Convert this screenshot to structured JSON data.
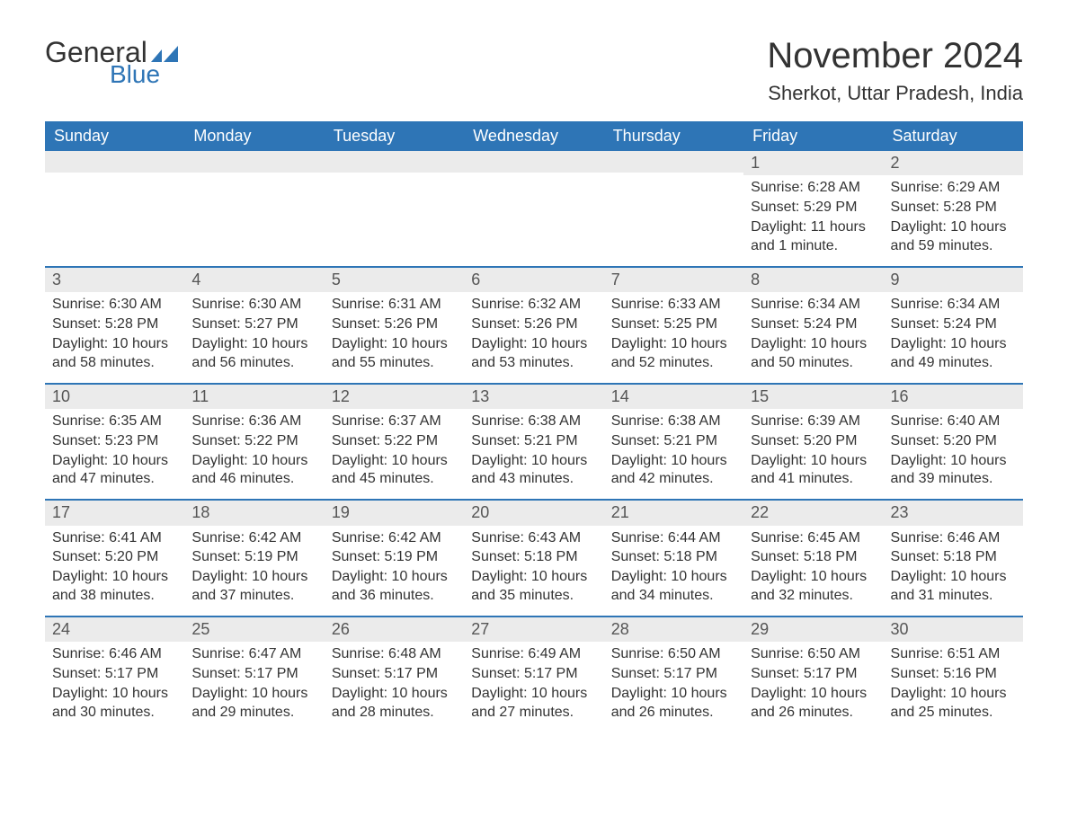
{
  "logo": {
    "text1": "General",
    "text2": "Blue",
    "flag_color": "#2e75b6"
  },
  "title": "November 2024",
  "location": "Sherkot, Uttar Pradesh, India",
  "colors": {
    "header_bg": "#2e75b6",
    "header_text": "#ffffff",
    "daynum_bg": "#ebebeb",
    "border": "#2e75b6",
    "text": "#333333"
  },
  "weekdays": [
    "Sunday",
    "Monday",
    "Tuesday",
    "Wednesday",
    "Thursday",
    "Friday",
    "Saturday"
  ],
  "weeks": [
    [
      {
        "day": "",
        "sunrise": "",
        "sunset": "",
        "daylight": ""
      },
      {
        "day": "",
        "sunrise": "",
        "sunset": "",
        "daylight": ""
      },
      {
        "day": "",
        "sunrise": "",
        "sunset": "",
        "daylight": ""
      },
      {
        "day": "",
        "sunrise": "",
        "sunset": "",
        "daylight": ""
      },
      {
        "day": "",
        "sunrise": "",
        "sunset": "",
        "daylight": ""
      },
      {
        "day": "1",
        "sunrise": "Sunrise: 6:28 AM",
        "sunset": "Sunset: 5:29 PM",
        "daylight": "Daylight: 11 hours and 1 minute."
      },
      {
        "day": "2",
        "sunrise": "Sunrise: 6:29 AM",
        "sunset": "Sunset: 5:28 PM",
        "daylight": "Daylight: 10 hours and 59 minutes."
      }
    ],
    [
      {
        "day": "3",
        "sunrise": "Sunrise: 6:30 AM",
        "sunset": "Sunset: 5:28 PM",
        "daylight": "Daylight: 10 hours and 58 minutes."
      },
      {
        "day": "4",
        "sunrise": "Sunrise: 6:30 AM",
        "sunset": "Sunset: 5:27 PM",
        "daylight": "Daylight: 10 hours and 56 minutes."
      },
      {
        "day": "5",
        "sunrise": "Sunrise: 6:31 AM",
        "sunset": "Sunset: 5:26 PM",
        "daylight": "Daylight: 10 hours and 55 minutes."
      },
      {
        "day": "6",
        "sunrise": "Sunrise: 6:32 AM",
        "sunset": "Sunset: 5:26 PM",
        "daylight": "Daylight: 10 hours and 53 minutes."
      },
      {
        "day": "7",
        "sunrise": "Sunrise: 6:33 AM",
        "sunset": "Sunset: 5:25 PM",
        "daylight": "Daylight: 10 hours and 52 minutes."
      },
      {
        "day": "8",
        "sunrise": "Sunrise: 6:34 AM",
        "sunset": "Sunset: 5:24 PM",
        "daylight": "Daylight: 10 hours and 50 minutes."
      },
      {
        "day": "9",
        "sunrise": "Sunrise: 6:34 AM",
        "sunset": "Sunset: 5:24 PM",
        "daylight": "Daylight: 10 hours and 49 minutes."
      }
    ],
    [
      {
        "day": "10",
        "sunrise": "Sunrise: 6:35 AM",
        "sunset": "Sunset: 5:23 PM",
        "daylight": "Daylight: 10 hours and 47 minutes."
      },
      {
        "day": "11",
        "sunrise": "Sunrise: 6:36 AM",
        "sunset": "Sunset: 5:22 PM",
        "daylight": "Daylight: 10 hours and 46 minutes."
      },
      {
        "day": "12",
        "sunrise": "Sunrise: 6:37 AM",
        "sunset": "Sunset: 5:22 PM",
        "daylight": "Daylight: 10 hours and 45 minutes."
      },
      {
        "day": "13",
        "sunrise": "Sunrise: 6:38 AM",
        "sunset": "Sunset: 5:21 PM",
        "daylight": "Daylight: 10 hours and 43 minutes."
      },
      {
        "day": "14",
        "sunrise": "Sunrise: 6:38 AM",
        "sunset": "Sunset: 5:21 PM",
        "daylight": "Daylight: 10 hours and 42 minutes."
      },
      {
        "day": "15",
        "sunrise": "Sunrise: 6:39 AM",
        "sunset": "Sunset: 5:20 PM",
        "daylight": "Daylight: 10 hours and 41 minutes."
      },
      {
        "day": "16",
        "sunrise": "Sunrise: 6:40 AM",
        "sunset": "Sunset: 5:20 PM",
        "daylight": "Daylight: 10 hours and 39 minutes."
      }
    ],
    [
      {
        "day": "17",
        "sunrise": "Sunrise: 6:41 AM",
        "sunset": "Sunset: 5:20 PM",
        "daylight": "Daylight: 10 hours and 38 minutes."
      },
      {
        "day": "18",
        "sunrise": "Sunrise: 6:42 AM",
        "sunset": "Sunset: 5:19 PM",
        "daylight": "Daylight: 10 hours and 37 minutes."
      },
      {
        "day": "19",
        "sunrise": "Sunrise: 6:42 AM",
        "sunset": "Sunset: 5:19 PM",
        "daylight": "Daylight: 10 hours and 36 minutes."
      },
      {
        "day": "20",
        "sunrise": "Sunrise: 6:43 AM",
        "sunset": "Sunset: 5:18 PM",
        "daylight": "Daylight: 10 hours and 35 minutes."
      },
      {
        "day": "21",
        "sunrise": "Sunrise: 6:44 AM",
        "sunset": "Sunset: 5:18 PM",
        "daylight": "Daylight: 10 hours and 34 minutes."
      },
      {
        "day": "22",
        "sunrise": "Sunrise: 6:45 AM",
        "sunset": "Sunset: 5:18 PM",
        "daylight": "Daylight: 10 hours and 32 minutes."
      },
      {
        "day": "23",
        "sunrise": "Sunrise: 6:46 AM",
        "sunset": "Sunset: 5:18 PM",
        "daylight": "Daylight: 10 hours and 31 minutes."
      }
    ],
    [
      {
        "day": "24",
        "sunrise": "Sunrise: 6:46 AM",
        "sunset": "Sunset: 5:17 PM",
        "daylight": "Daylight: 10 hours and 30 minutes."
      },
      {
        "day": "25",
        "sunrise": "Sunrise: 6:47 AM",
        "sunset": "Sunset: 5:17 PM",
        "daylight": "Daylight: 10 hours and 29 minutes."
      },
      {
        "day": "26",
        "sunrise": "Sunrise: 6:48 AM",
        "sunset": "Sunset: 5:17 PM",
        "daylight": "Daylight: 10 hours and 28 minutes."
      },
      {
        "day": "27",
        "sunrise": "Sunrise: 6:49 AM",
        "sunset": "Sunset: 5:17 PM",
        "daylight": "Daylight: 10 hours and 27 minutes."
      },
      {
        "day": "28",
        "sunrise": "Sunrise: 6:50 AM",
        "sunset": "Sunset: 5:17 PM",
        "daylight": "Daylight: 10 hours and 26 minutes."
      },
      {
        "day": "29",
        "sunrise": "Sunrise: 6:50 AM",
        "sunset": "Sunset: 5:17 PM",
        "daylight": "Daylight: 10 hours and 26 minutes."
      },
      {
        "day": "30",
        "sunrise": "Sunrise: 6:51 AM",
        "sunset": "Sunset: 5:16 PM",
        "daylight": "Daylight: 10 hours and 25 minutes."
      }
    ]
  ]
}
